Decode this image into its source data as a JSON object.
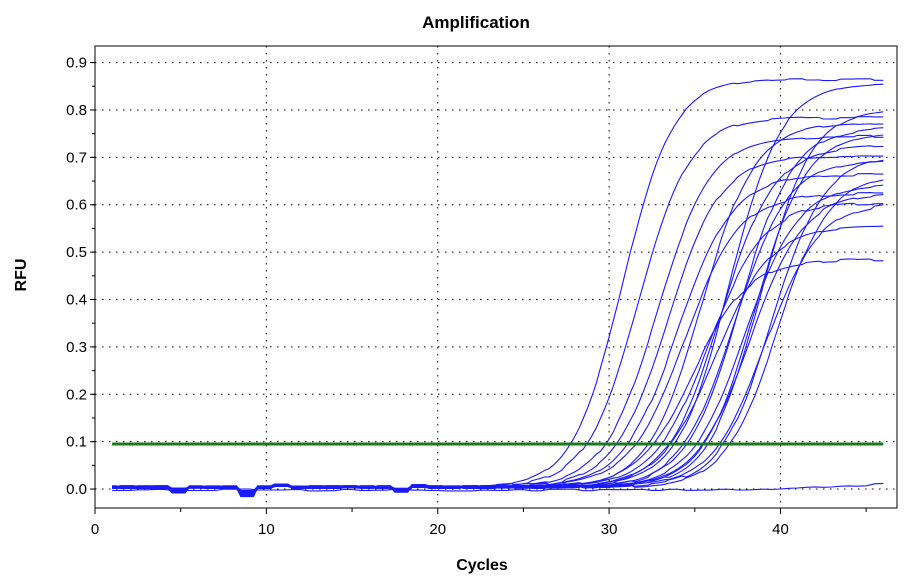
{
  "chart_data": {
    "type": "line",
    "title": "Amplification",
    "xlabel": "Cycles",
    "ylabel": "RFU",
    "xlim": [
      0,
      46.8
    ],
    "ylim": [
      -0.04,
      0.935
    ],
    "xticks": [
      0,
      10,
      20,
      30,
      40
    ],
    "yticks": [
      0.0,
      0.1,
      0.2,
      0.3,
      0.4,
      0.5,
      0.6,
      0.7,
      0.8,
      0.9
    ],
    "xtick_labels": [
      "0",
      "10",
      "20",
      "30",
      "40"
    ],
    "ytick_labels": [
      "0.0",
      "0.1",
      "0.2",
      "0.3",
      "0.4",
      "0.5",
      "0.6",
      "0.7",
      "0.8",
      "0.9"
    ],
    "grid": true,
    "cycle_range": [
      1,
      46
    ],
    "series_color": "#1a1aff",
    "threshold": {
      "value": 0.095,
      "color": "#1a7a1a"
    },
    "series": [
      {
        "ct": 28.6,
        "plateau": 0.86,
        "slope": 1.45
      },
      {
        "ct": 29.5,
        "plateau": 0.78,
        "slope": 1.5
      },
      {
        "ct": 30.6,
        "plateau": 0.74,
        "slope": 1.55
      },
      {
        "ct": 31.2,
        "plateau": 0.7,
        "slope": 1.55
      },
      {
        "ct": 31.8,
        "plateau": 0.66,
        "slope": 1.6
      },
      {
        "ct": 32.2,
        "plateau": 0.62,
        "slope": 1.6
      },
      {
        "ct": 32.7,
        "plateau": 0.48,
        "slope": 1.6
      },
      {
        "ct": 33.2,
        "plateau": 0.77,
        "slope": 1.55
      },
      {
        "ct": 33.6,
        "plateau": 0.6,
        "slope": 1.6
      },
      {
        "ct": 34.0,
        "plateau": 0.55,
        "slope": 1.6
      },
      {
        "ct": 34.3,
        "plateau": 0.72,
        "slope": 1.55
      },
      {
        "ct": 34.8,
        "plateau": 0.85,
        "slope": 1.5
      },
      {
        "ct": 35.1,
        "plateau": 0.69,
        "slope": 1.55
      },
      {
        "ct": 35.4,
        "plateau": 0.76,
        "slope": 1.55
      },
      {
        "ct": 35.7,
        "plateau": 0.64,
        "slope": 1.55
      },
      {
        "ct": 36.0,
        "plateau": 0.62,
        "slope": 1.55
      },
      {
        "ct": 36.3,
        "plateau": 0.75,
        "slope": 1.5
      },
      {
        "ct": 36.6,
        "plateau": 0.8,
        "slope": 1.5
      },
      {
        "ct": 36.9,
        "plateau": 0.6,
        "slope": 1.55
      },
      {
        "ct": 37.3,
        "plateau": 0.7,
        "slope": 1.5
      },
      {
        "ct": 37.6,
        "plateau": 0.66,
        "slope": 1.5
      }
    ],
    "flat_series": [
      {
        "end_value": 0.012
      }
    ]
  }
}
